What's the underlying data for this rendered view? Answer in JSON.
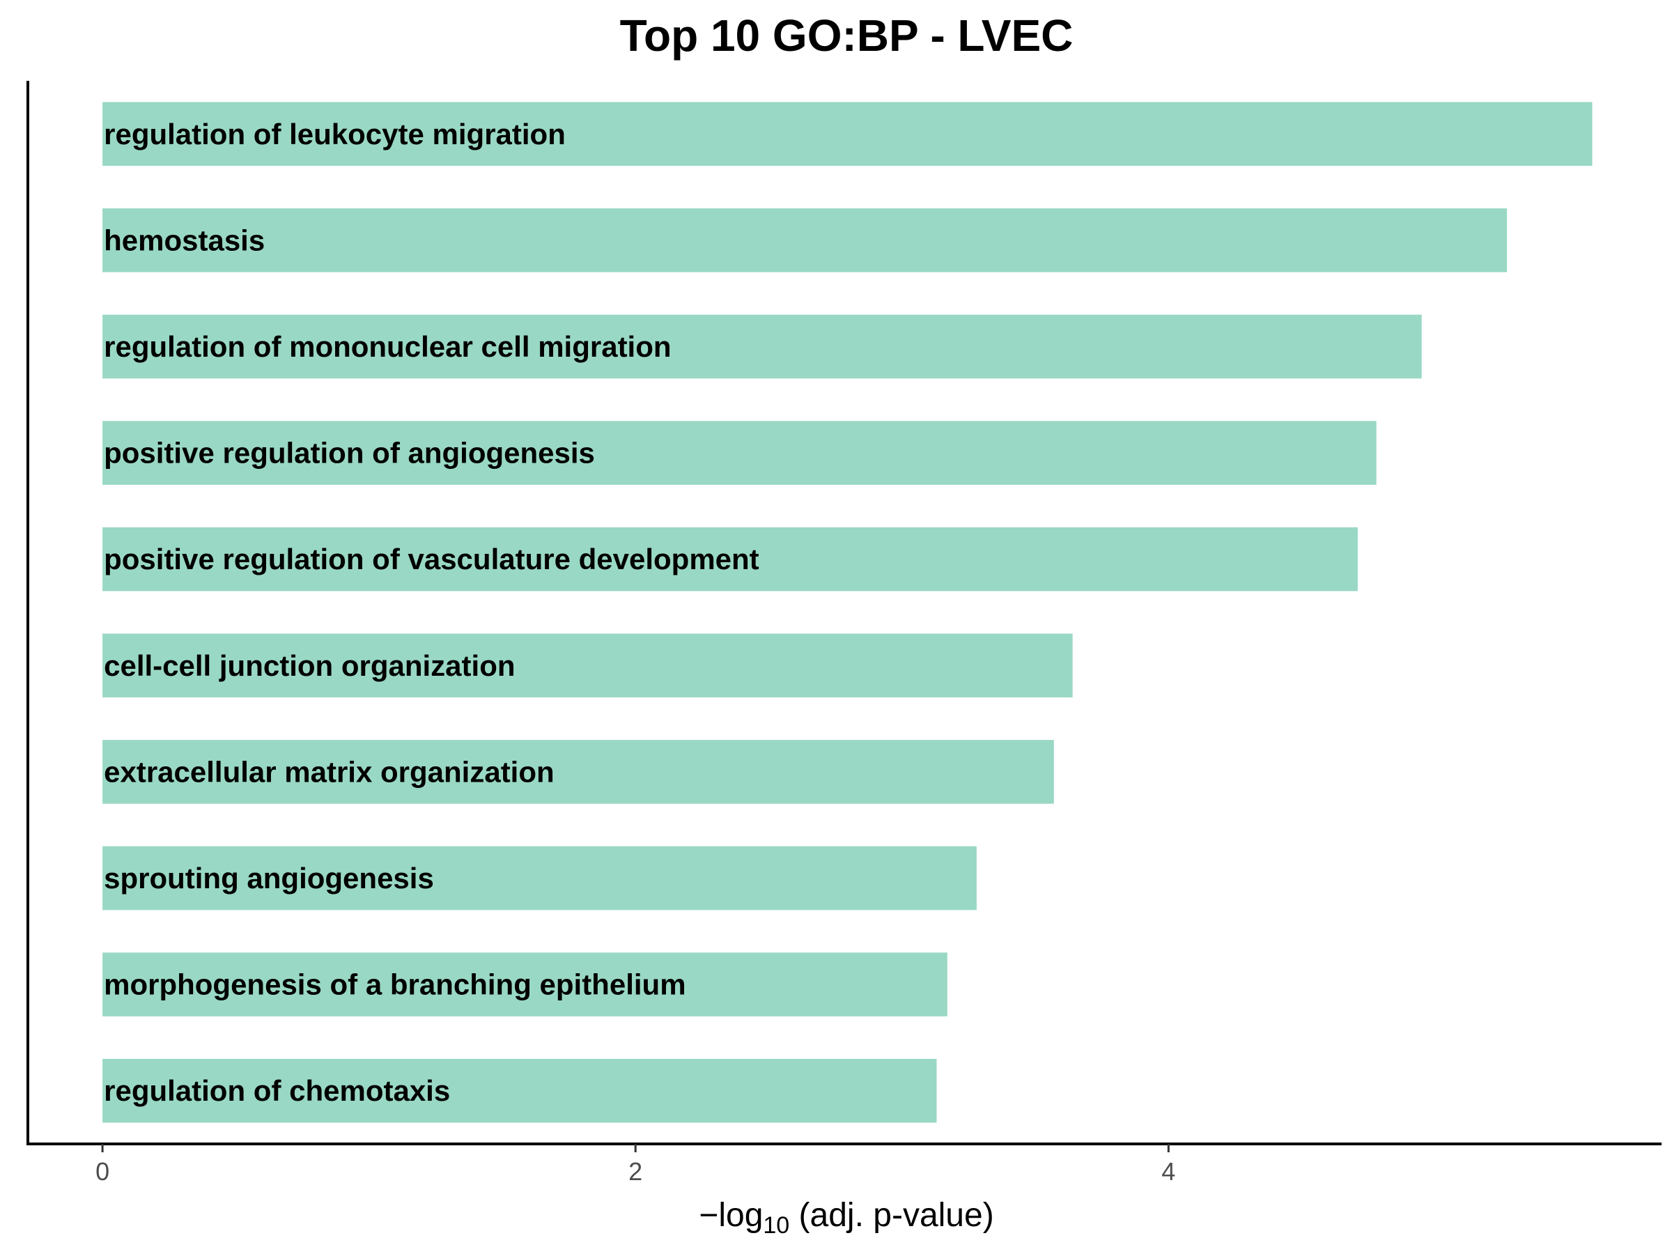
{
  "chart_data": {
    "type": "bar",
    "orientation": "horizontal",
    "title": "Top 10 GO:BP - LVEC",
    "xlabel_prefix": "−log",
    "xlabel_subscript": "10",
    "xlabel_suffix": " (adj. p-value)",
    "ylabel": "",
    "categories": [
      "regulation of leukocyte migration",
      "hemostasis",
      "regulation of mononuclear cell migration",
      "positive regulation of angiogenesis",
      "positive regulation of vasculature development",
      "cell-cell junction organization",
      "extracellular matrix organization",
      "sprouting angiogenesis",
      "morphogenesis of a branching epithelium",
      "regulation of chemotaxis"
    ],
    "values": [
      5.59,
      5.27,
      4.95,
      4.78,
      4.71,
      3.64,
      3.57,
      3.28,
      3.17,
      3.13
    ],
    "xticks": [
      "0",
      "2",
      "4"
    ],
    "xlim": [
      -0.28,
      5.85
    ],
    "grid": false,
    "bar_color": "#99d8c4"
  }
}
